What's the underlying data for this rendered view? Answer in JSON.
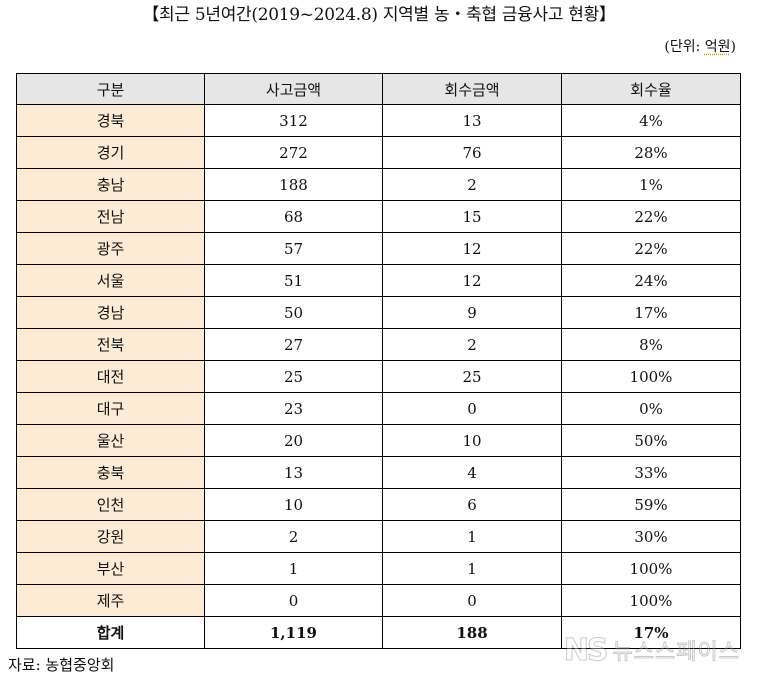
{
  "title": "【최근 5년여간(2019~2024.8) 지역별 농・축협 금융사고 현황】",
  "unit": {
    "prefix": "(단위: ",
    "word": "억원",
    "suffix": ")"
  },
  "table": {
    "headers": [
      "구분",
      "사고금액",
      "회수금액",
      "회수율"
    ],
    "rows": [
      [
        "경북",
        "312",
        "13",
        "4%"
      ],
      [
        "경기",
        "272",
        "76",
        "28%"
      ],
      [
        "충남",
        "188",
        "2",
        "1%"
      ],
      [
        "전남",
        "68",
        "15",
        "22%"
      ],
      [
        "광주",
        "57",
        "12",
        "22%"
      ],
      [
        "서울",
        "51",
        "12",
        "24%"
      ],
      [
        "경남",
        "50",
        "9",
        "17%"
      ],
      [
        "전북",
        "27",
        "2",
        "8%"
      ],
      [
        "대전",
        "25",
        "25",
        "100%"
      ],
      [
        "대구",
        "23",
        "0",
        "0%"
      ],
      [
        "울산",
        "20",
        "10",
        "50%"
      ],
      [
        "충북",
        "13",
        "4",
        "33%"
      ],
      [
        "인천",
        "10",
        "6",
        "59%"
      ],
      [
        "강원",
        "2",
        "1",
        "30%"
      ],
      [
        "부산",
        "1",
        "1",
        "100%"
      ],
      [
        "제주",
        "0",
        "0",
        "100%"
      ]
    ],
    "total": [
      "합계",
      "1,119",
      "188",
      "17%"
    ]
  },
  "source": "자료: 농협중앙회",
  "watermark": {
    "mark": "NS",
    "text": "뉴스스페이스"
  },
  "colors": {
    "header_bg": "#e6e6e6",
    "region_bg": "#fdebd5",
    "border": "#000000"
  }
}
